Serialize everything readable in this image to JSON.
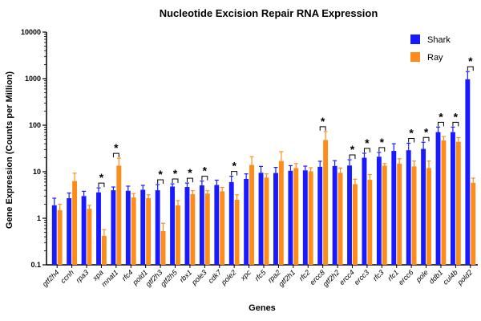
{
  "chart_data": {
    "type": "bar",
    "title": "Nucleotide Excision Repair RNA Expression",
    "xlabel": "Genes",
    "ylabel": "Gene Expression (Counts per Million)",
    "yscale": "log",
    "ylim": [
      0.1,
      10000
    ],
    "yticks": [
      "0.1",
      "1",
      "10",
      "100",
      "1000",
      "10000"
    ],
    "legend_position": "top-right",
    "grid": false,
    "categories": [
      "gtf2h4",
      "ccnh",
      "rpa3",
      "xpa",
      "mnat1",
      "rfc4",
      "pold1",
      "gtf2h3",
      "gtf2h5",
      "rbx1",
      "pole3",
      "cdk7",
      "pole2",
      "xpc",
      "rfc5",
      "rpa2",
      "gtf2h1",
      "rfc2",
      "ercc8",
      "gtf2h2",
      "ercc4",
      "ercc3",
      "rfc3",
      "rfc1",
      "ercc6",
      "pole",
      "ddb1",
      "cul4b",
      "pold2"
    ],
    "series": [
      {
        "name": "Shark",
        "color": "#1a1aff",
        "values": [
          1.9,
          2.7,
          3.0,
          3.6,
          4.0,
          3.9,
          4.1,
          4.0,
          4.8,
          4.7,
          5.1,
          5.2,
          6.0,
          7.0,
          9.5,
          9.4,
          10.5,
          10.7,
          12.8,
          13.3,
          13.6,
          20.0,
          21.0,
          28.0,
          29.0,
          31.0,
          71.0,
          71.0,
          970.0
        ],
        "errors": [
          0.8,
          0.8,
          0.8,
          0.9,
          0.7,
          1.0,
          1.0,
          1.3,
          0.7,
          1.0,
          1.2,
          1.4,
          2.0,
          2.0,
          3.5,
          3.0,
          3.0,
          2.5,
          4.0,
          4.0,
          4.5,
          5.0,
          5.0,
          12.0,
          12.0,
          12.0,
          20.0,
          20.0,
          450.0
        ]
      },
      {
        "name": "Ray",
        "color": "#ff8c1a",
        "values": [
          1.5,
          6.3,
          1.6,
          0.42,
          13.5,
          2.8,
          2.7,
          0.53,
          1.9,
          3.3,
          3.4,
          3.8,
          2.5,
          14.0,
          7.5,
          17.0,
          12.0,
          10.2,
          48.0,
          9.5,
          5.4,
          6.7,
          13.5,
          15.0,
          13.0,
          12.0,
          47.0,
          44.0,
          5.8
        ]
      }
    ],
    "ray_errors": [
      0.5,
      3.0,
      0.3,
      0.15,
      6.0,
      0.6,
      0.5,
      0.25,
      0.5,
      0.6,
      0.5,
      0.8,
      0.7,
      7.0,
      1.5,
      10.0,
      3.0,
      2.0,
      25.0,
      2.5,
      1.5,
      2.0,
      1.5,
      4.0,
      4.0,
      5.0,
      10.0,
      10.0,
      1.5
    ],
    "significance": {
      "marker": "*",
      "categories": [
        "xpa",
        "mnat1",
        "gtf2h3",
        "gtf2h5",
        "rbx1",
        "pole3",
        "pole2",
        "ercc8",
        "ercc4",
        "ercc3",
        "rfc3",
        "ercc6",
        "pole",
        "ddb1",
        "cul4b",
        "pold2"
      ]
    }
  }
}
